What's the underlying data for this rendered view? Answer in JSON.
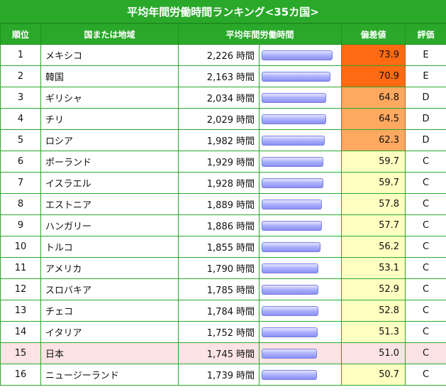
{
  "title": "平均年間労働時間ランキング<35カ国>",
  "headers": {
    "rank": "順位",
    "country": "国または地域",
    "hours": "平均年間労働時間",
    "score": "偏差値",
    "grade": "評価"
  },
  "unit": "時間",
  "bar_max_hours": 2226,
  "colors": {
    "header_green": "#2aa82a",
    "grade_E": "#ff6a12",
    "grade_D": "#ffa860",
    "grade_C": "#ffffc2",
    "highlight_row": "#fde3e3",
    "link_blue": "#1020c8"
  },
  "rows": [
    {
      "rank": "1",
      "country": "メキシコ",
      "hours": "2,226",
      "hours_value": 2226,
      "score": "73.9",
      "grade": "E"
    },
    {
      "rank": "2",
      "country": "韓国",
      "hours": "2,163",
      "hours_value": 2163,
      "score": "70.9",
      "grade": "E"
    },
    {
      "rank": "3",
      "country": "ギリシャ",
      "hours": "2,034",
      "hours_value": 2034,
      "score": "64.8",
      "grade": "D"
    },
    {
      "rank": "4",
      "country": "チリ",
      "hours": "2,029",
      "hours_value": 2029,
      "score": "64.5",
      "grade": "D"
    },
    {
      "rank": "5",
      "country": "ロシア",
      "hours": "1,982",
      "hours_value": 1982,
      "score": "62.3",
      "grade": "D"
    },
    {
      "rank": "6",
      "country": "ポーランド",
      "hours": "1,929",
      "hours_value": 1929,
      "score": "59.7",
      "grade": "C"
    },
    {
      "rank": "7",
      "country": "イスラエル",
      "hours": "1,928",
      "hours_value": 1928,
      "score": "59.7",
      "grade": "C"
    },
    {
      "rank": "8",
      "country": "エストニア",
      "hours": "1,889",
      "hours_value": 1889,
      "score": "57.8",
      "grade": "C"
    },
    {
      "rank": "9",
      "country": "ハンガリー",
      "hours": "1,886",
      "hours_value": 1886,
      "score": "57.7",
      "grade": "C"
    },
    {
      "rank": "10",
      "country": "トルコ",
      "hours": "1,855",
      "hours_value": 1855,
      "score": "56.2",
      "grade": "C"
    },
    {
      "rank": "11",
      "country": "アメリカ",
      "hours": "1,790",
      "hours_value": 1790,
      "score": "53.1",
      "grade": "C"
    },
    {
      "rank": "12",
      "country": "スロバキア",
      "hours": "1,785",
      "hours_value": 1785,
      "score": "52.9",
      "grade": "C"
    },
    {
      "rank": "13",
      "country": "チェコ",
      "hours": "1,784",
      "hours_value": 1784,
      "score": "52.8",
      "grade": "C"
    },
    {
      "rank": "14",
      "country": "イタリア",
      "hours": "1,752",
      "hours_value": 1752,
      "score": "51.3",
      "grade": "C"
    },
    {
      "rank": "15",
      "country": "日本",
      "hours": "1,745",
      "hours_value": 1745,
      "score": "51.0",
      "grade": "C",
      "highlight": true
    },
    {
      "rank": "16",
      "country": "ニュージーランド",
      "hours": "1,739",
      "hours_value": 1739,
      "score": "50.7",
      "grade": "C"
    }
  ]
}
